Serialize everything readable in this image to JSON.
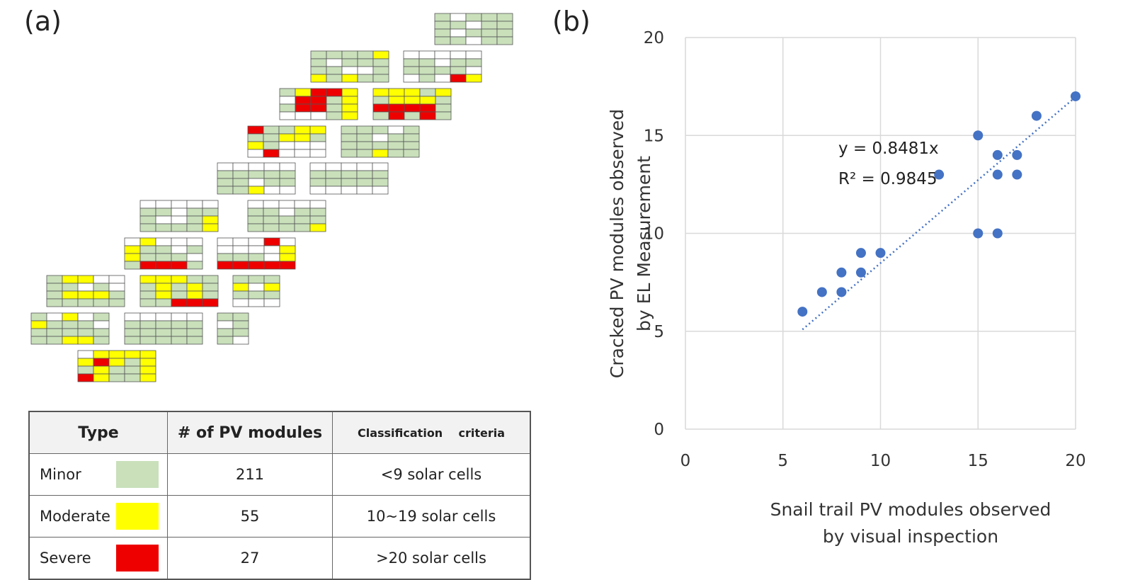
{
  "panels": {
    "a_label": "(a)",
    "b_label": "(b)"
  },
  "colors": {
    "minor": "#c9e0bb",
    "moderate": "#ffff00",
    "severe": "#ee0000",
    "empty": "#ffffff",
    "point": "#4472c4",
    "grid": "#d9d9d9"
  },
  "legend_table": {
    "headers": [
      "Type",
      "# of PV modules",
      "Classification    criteria"
    ],
    "rows": [
      {
        "type": "Minor",
        "count": "211",
        "criteria": "<9 solar cells",
        "color": "#c9e0bb"
      },
      {
        "type": "Moderate",
        "count": "55",
        "criteria": "10~19 solar cells",
        "color": "#ffff00"
      },
      {
        "type": "Severe",
        "count": "27",
        "criteria": ">20 solar cells",
        "color": "#ee0000"
      }
    ]
  },
  "chart_data": {
    "type": "scatter",
    "xlabel": [
      "Snail trail PV modules observed",
      "by visual inspection"
    ],
    "ylabel": [
      "Cracked PV modules observed",
      "by EL Measurement"
    ],
    "xlim": [
      0,
      20
    ],
    "ylim": [
      0,
      20
    ],
    "xticks": [
      "0",
      "5",
      "10",
      "15",
      "20"
    ],
    "yticks": [
      "0",
      "5",
      "10",
      "15",
      "20"
    ],
    "grid": true,
    "points": [
      [
        6,
        6
      ],
      [
        7,
        7
      ],
      [
        8,
        7
      ],
      [
        8,
        8
      ],
      [
        9,
        8
      ],
      [
        9,
        9
      ],
      [
        10,
        9
      ],
      [
        13,
        13
      ],
      [
        15,
        15
      ],
      [
        15,
        10
      ],
      [
        16,
        10
      ],
      [
        16,
        13
      ],
      [
        16,
        14
      ],
      [
        17,
        13
      ],
      [
        17,
        14
      ],
      [
        18,
        16
      ],
      [
        20,
        17
      ]
    ],
    "trendline": {
      "slope": 0.8481,
      "x_range": [
        6,
        20
      ],
      "style": "dotted"
    },
    "annotation": [
      "y = 0.8481x",
      "R² = 0.9845"
    ]
  }
}
